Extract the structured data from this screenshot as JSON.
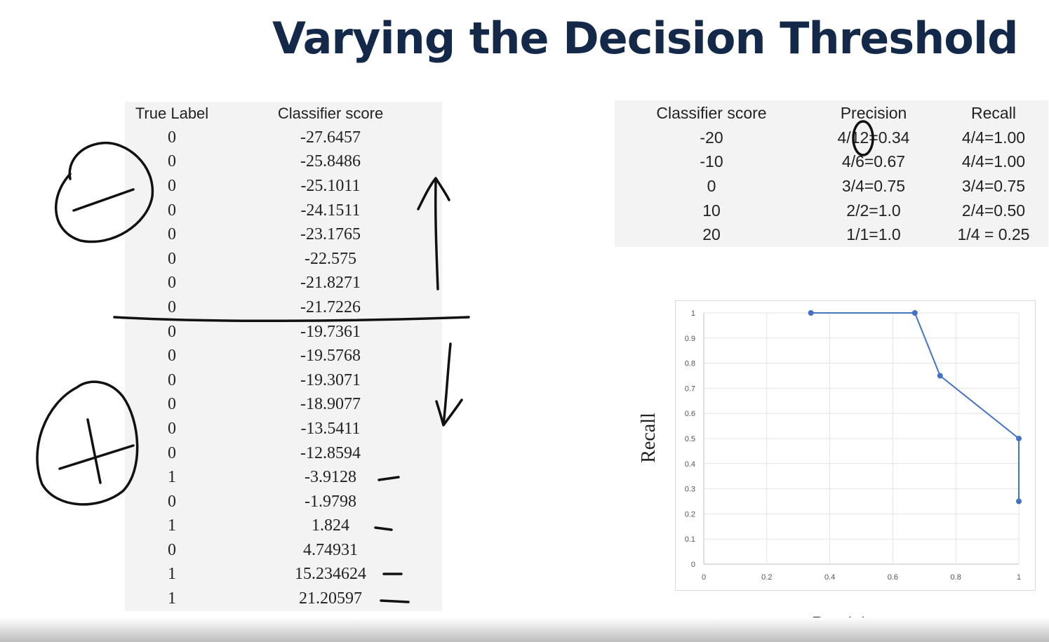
{
  "title": "Varying the Decision Threshold",
  "left_table": {
    "headers": [
      "True Label",
      "Classifier score"
    ],
    "rows": [
      [
        "0",
        "-27.6457"
      ],
      [
        "0",
        "-25.8486"
      ],
      [
        "0",
        "-25.1011"
      ],
      [
        "0",
        "-24.1511"
      ],
      [
        "0",
        "-23.1765"
      ],
      [
        "0",
        "-22.575"
      ],
      [
        "0",
        "-21.8271"
      ],
      [
        "0",
        "-21.7226"
      ],
      [
        "0",
        "-19.7361"
      ],
      [
        "0",
        "-19.5768"
      ],
      [
        "0",
        "-19.3071"
      ],
      [
        "0",
        "-18.9077"
      ],
      [
        "0",
        "-13.5411"
      ],
      [
        "0",
        "-12.8594"
      ],
      [
        "1",
        "-3.9128"
      ],
      [
        "0",
        "-1.9798"
      ],
      [
        "1",
        "1.824"
      ],
      [
        "0",
        "4.74931"
      ],
      [
        "1",
        "15.234624"
      ],
      [
        "1",
        "21.20597"
      ]
    ]
  },
  "right_table": {
    "headers": [
      "Classifier score",
      "Precision",
      "Recall"
    ],
    "rows": [
      [
        "-20",
        "4/12=0.34",
        "4/4=1.00"
      ],
      [
        "-10",
        "4/6=0.67",
        "4/4=1.00"
      ],
      [
        "0",
        "3/4=0.75",
        "3/4=0.75"
      ],
      [
        "10",
        "2/2=1.0",
        "2/4=0.50"
      ],
      [
        "20",
        "1/1=1.0",
        "1/4 = 0.25"
      ]
    ]
  },
  "chart_data": {
    "type": "line",
    "xlabel": "Precision",
    "ylabel": "Recall",
    "xlim": [
      0,
      1
    ],
    "ylim": [
      0,
      1
    ],
    "x_ticks": [
      "0",
      "0.2",
      "0.4",
      "0.6",
      "0.8",
      "1"
    ],
    "y_ticks": [
      "0",
      "0.1",
      "0.2",
      "0.3",
      "0.4",
      "0.5",
      "0.6",
      "0.7",
      "0.8",
      "0.9",
      "1"
    ],
    "grid": true,
    "series": [
      {
        "x": [
          0.34,
          0.67,
          0.75,
          1.0,
          1.0
        ],
        "y": [
          1.0,
          1.0,
          0.75,
          0.5,
          0.25
        ],
        "color": "#4472c4"
      }
    ]
  }
}
